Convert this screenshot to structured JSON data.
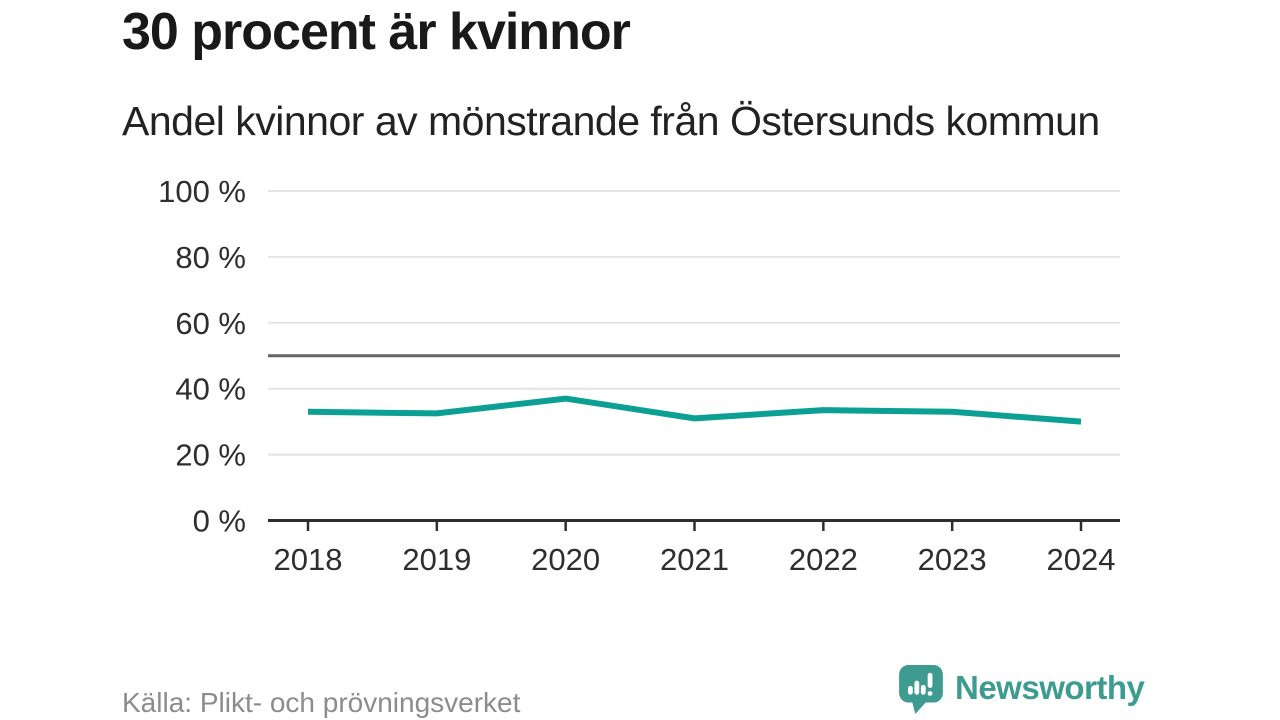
{
  "header": {
    "title": "30 procent är kvinnor",
    "subtitle": "Andel kvinnor av mönstrande från Östersunds kommun"
  },
  "chart_data": {
    "type": "line",
    "title": "30 procent är kvinnor",
    "subtitle": "Andel kvinnor av mönstrande från Östersunds kommun",
    "x": [
      2018,
      2019,
      2020,
      2021,
      2022,
      2023,
      2024
    ],
    "series": [
      {
        "name": "Andel kvinnor av mönstrande",
        "values": [
          33,
          32.5,
          37,
          31,
          33.5,
          33,
          30
        ]
      }
    ],
    "xlabel": "",
    "ylabel": "",
    "ylim": [
      0,
      100
    ],
    "yticks": [
      0,
      20,
      40,
      60,
      80,
      100
    ],
    "ytick_suffix": " %",
    "reference_line": 50,
    "grid": true,
    "legend_position": "none"
  },
  "footer": {
    "source": "Källa: Plikt- och prövningsverket",
    "brand": "Newsworthy"
  },
  "colors": {
    "line": "#0ba093",
    "reference_line": "#666666",
    "gridline": "#e4e4e4",
    "axis": "#2e2e2e",
    "tick_label": "#2e2e2e",
    "title": "#191919",
    "subtitle": "#222222",
    "source_text": "#8c8c8c",
    "brand": "#3d9b8f"
  }
}
